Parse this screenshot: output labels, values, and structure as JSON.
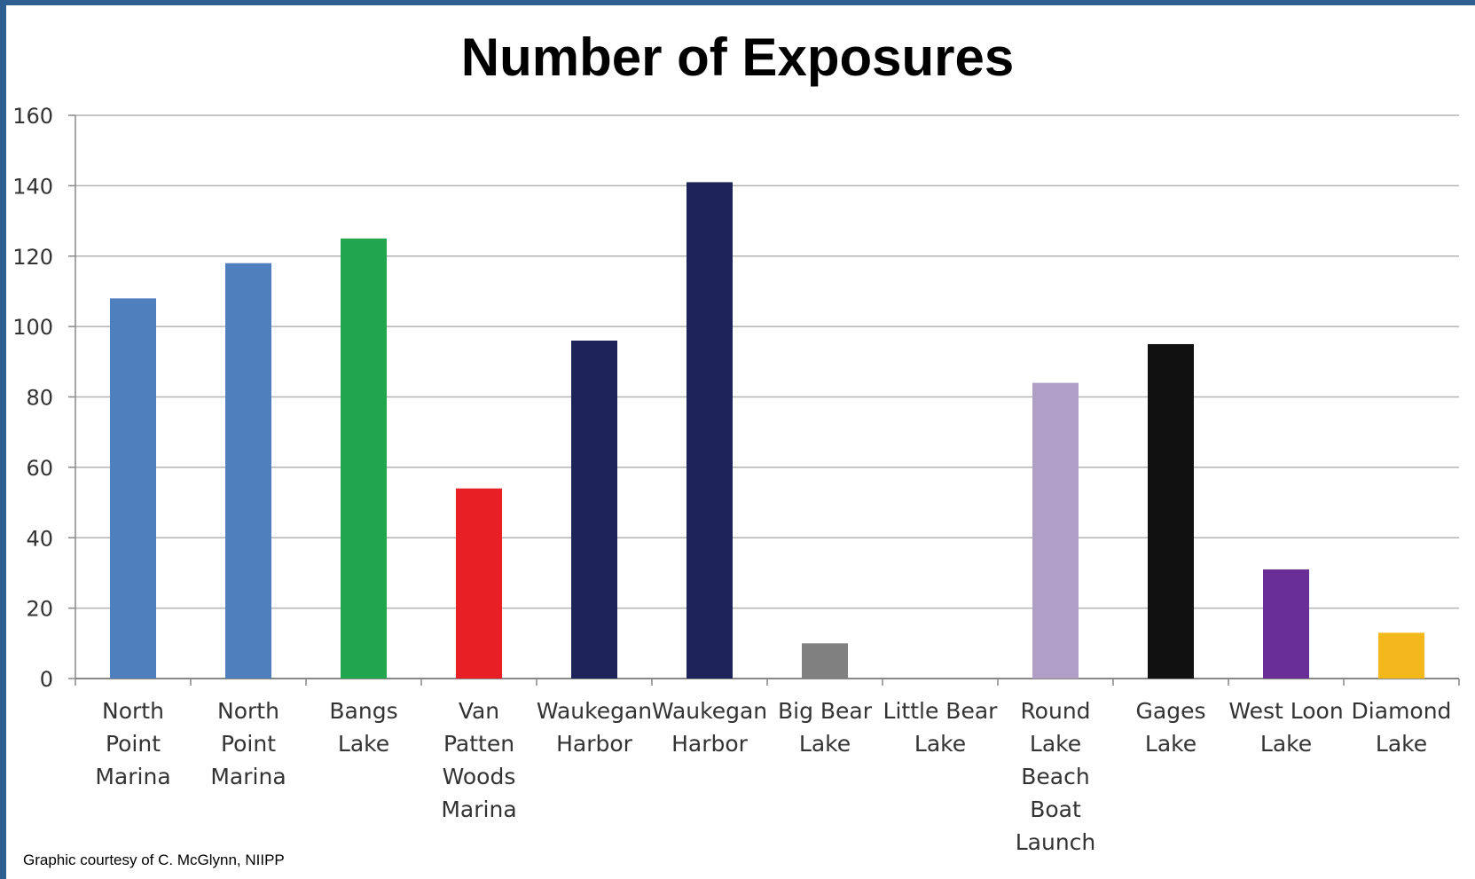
{
  "chart_data": {
    "type": "bar",
    "title": "Number of Exposures",
    "xlabel": "",
    "ylabel": "",
    "ylim": [
      0,
      160
    ],
    "yticks": [
      0,
      20,
      40,
      60,
      80,
      100,
      120,
      140,
      160
    ],
    "grid": true,
    "legend": "none",
    "categories": [
      [
        "North",
        "Point",
        "Marina"
      ],
      [
        "North",
        "Point",
        "Marina"
      ],
      [
        "Bangs",
        "Lake"
      ],
      [
        "Van",
        "Patten",
        "Woods",
        "Marina"
      ],
      [
        "Waukegan",
        "Harbor"
      ],
      [
        "Waukegan",
        "Harbor"
      ],
      [
        "Big Bear",
        "Lake"
      ],
      [
        "Little Bear",
        "Lake"
      ],
      [
        "Round",
        "Lake",
        "Beach",
        "Boat",
        "Launch"
      ],
      [
        "Gages",
        "Lake"
      ],
      [
        "West Loon",
        "Lake"
      ],
      [
        "Diamond",
        "Lake"
      ]
    ],
    "values": [
      108,
      118,
      125,
      54,
      96,
      141,
      10,
      0,
      84,
      95,
      31,
      13
    ],
    "colors": [
      "#4f7fbd",
      "#4f7fbd",
      "#22a54f",
      "#e82026",
      "#1c2459",
      "#1c2459",
      "#808080",
      "#ffffff",
      "#b09ec6",
      "#111111",
      "#6a2f96",
      "#f2b81c"
    ]
  },
  "credit": "Graphic courtesy of C. McGlynn, NIIPP"
}
